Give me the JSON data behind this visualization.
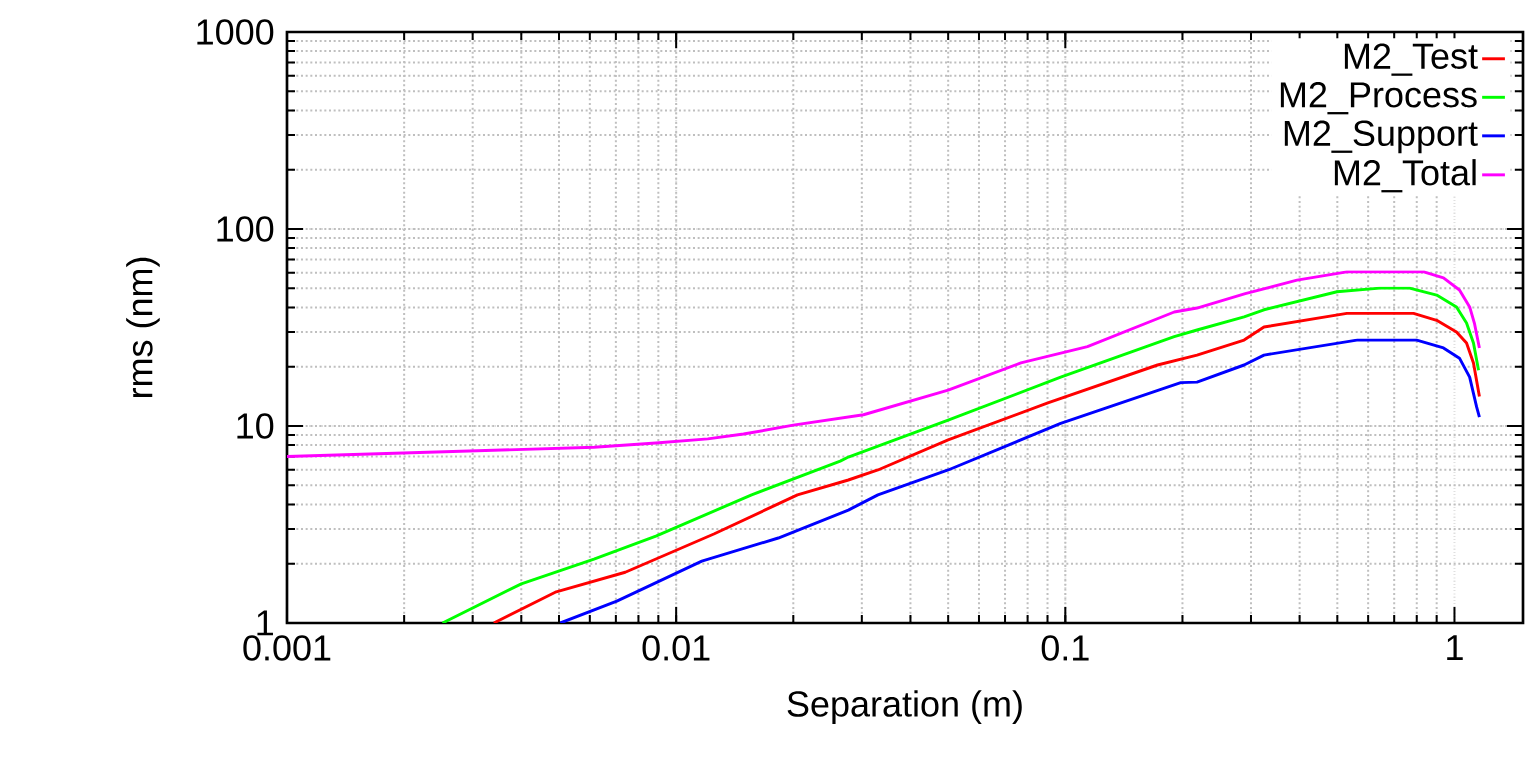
{
  "chart_data": {
    "type": "line",
    "xlabel": "Separation (m)",
    "ylabel": "rms (nm)",
    "log": "xy",
    "grid": true,
    "legend": "top right",
    "marker": "none",
    "line_style": "solid",
    "xlim": [
      0.001,
      1.5
    ],
    "ylim": [
      1,
      1000
    ],
    "xticks": [
      0.001,
      0.01,
      0.1,
      1
    ],
    "yticks": [
      1,
      10,
      100,
      1000
    ],
    "series": [
      {
        "name": "M2_Test",
        "color": "#ff0000",
        "x": [
          0.0034,
          0.00492,
          0.0074,
          0.0125,
          0.0205,
          0.0277,
          0.033,
          0.05,
          0.0902,
          0.1726,
          0.218,
          0.288,
          0.324,
          0.529,
          0.785,
          0.9,
          1.012,
          1.074,
          1.119,
          1.159
        ],
        "values": [
          1,
          1.44,
          1.81,
          2.83,
          4.47,
          5.32,
          5.98,
          8.5,
          13.1,
          20.4,
          22.9,
          27.3,
          31.8,
          37.3,
          37.3,
          34.4,
          30.0,
          26.4,
          20.9,
          14.1
        ]
      },
      {
        "name": "M2_Process",
        "color": "#00ff00",
        "x": [
          0.00251,
          0.004,
          0.00615,
          0.00887,
          0.01563,
          0.0264,
          0.0277,
          0.05,
          0.0973,
          0.1905,
          0.218,
          0.288,
          0.324,
          0.499,
          0.643,
          0.767,
          0.9,
          1.012,
          1.074,
          1.119,
          1.153
        ],
        "values": [
          1,
          1.58,
          2.11,
          2.76,
          4.47,
          6.63,
          6.96,
          10.7,
          17.7,
          28.4,
          30.7,
          35.8,
          38.9,
          48,
          50.1,
          50.1,
          46.2,
          40.2,
          33.3,
          26.4,
          19.2
        ]
      },
      {
        "name": "M2_Support",
        "color": "#0000ff",
        "x": [
          0.00504,
          0.00704,
          0.01164,
          0.0183,
          0.0277,
          0.033,
          0.05,
          0.0973,
          0.198,
          0.218,
          0.288,
          0.324,
          0.561,
          0.8,
          0.937,
          1.03,
          1.094,
          1.14,
          1.159
        ],
        "values": [
          1,
          1.29,
          2.06,
          2.7,
          3.74,
          4.47,
          5.98,
          10.3,
          16.6,
          16.7,
          20.4,
          22.9,
          27.3,
          27.3,
          24.9,
          22.1,
          17.7,
          12.5,
          11.1
        ]
      },
      {
        "name": "M2_Total",
        "color": "#ff00ff",
        "x": [
          0.001,
          0.00254,
          0.00615,
          0.00887,
          0.01206,
          0.0149,
          0.02,
          0.0303,
          0.05,
          0.0769,
          0.114,
          0.1905,
          0.218,
          0.29,
          0.394,
          0.529,
          0.834,
          0.937,
          1.03,
          1.094,
          1.125,
          1.159
        ],
        "values": [
          7.0,
          7.4,
          7.8,
          8.2,
          8.6,
          9.1,
          10.1,
          11.4,
          15.2,
          20.9,
          25.3,
          37.9,
          39.7,
          47,
          55,
          60.6,
          60.6,
          56.5,
          49,
          40.2,
          33.3,
          24.9
        ]
      }
    ]
  }
}
